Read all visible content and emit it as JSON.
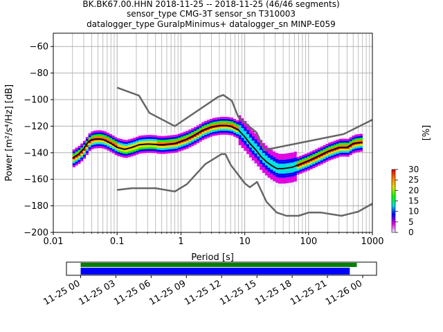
{
  "chart_data": {
    "type": "heatmap",
    "title_lines": [
      "BK.BK67.00.HHN   2018-11-25 -- 2018-11-25  (46/46 segments)",
      "sensor_type CMG-3T sensor_sn T310003",
      "datalogger_type GuralpMinimus+ datalogger_sn MINP-E059"
    ],
    "xlabel": "Period [s]",
    "ylabel": "Power [m²/s⁴/Hz] [dB]",
    "x_scale": "log",
    "xlim": [
      0.01,
      1000
    ],
    "ylim": [
      -200,
      -50
    ],
    "x_ticks": [
      {
        "value": 0.01,
        "label": "0.01"
      },
      {
        "value": 0.1,
        "label": "0.1"
      },
      {
        "value": 1,
        "label": "1"
      },
      {
        "value": 10,
        "label": "10"
      },
      {
        "value": 100,
        "label": "100"
      },
      {
        "value": 1000,
        "label": "1000"
      }
    ],
    "y_ticks": [
      {
        "value": -60,
        "label": "−60"
      },
      {
        "value": -80,
        "label": "−80"
      },
      {
        "value": -100,
        "label": "−100"
      },
      {
        "value": -120,
        "label": "−120"
      },
      {
        "value": -140,
        "label": "−140"
      },
      {
        "value": -160,
        "label": "−160"
      },
      {
        "value": -180,
        "label": "−180"
      },
      {
        "value": -200,
        "label": "−200"
      }
    ],
    "grid": true,
    "noise_models": [
      {
        "points": [
          [
            0.1,
            -91
          ],
          [
            0.22,
            -97
          ],
          [
            0.32,
            -110
          ],
          [
            0.8,
            -120
          ],
          [
            3.8,
            -98
          ],
          [
            4.6,
            -96.5
          ],
          [
            6.3,
            -101
          ],
          [
            7.9,
            -113
          ],
          [
            15.4,
            -125
          ],
          [
            20,
            -138
          ],
          [
            354.8,
            -126
          ],
          [
            10000,
            -91
          ]
        ]
      },
      {
        "points": [
          [
            0.1,
            -168
          ],
          [
            0.17,
            -166.7
          ],
          [
            0.4,
            -166.7
          ],
          [
            0.8,
            -169.2
          ],
          [
            1.24,
            -163.7
          ],
          [
            2.4,
            -148.6
          ],
          [
            4.3,
            -141.1
          ],
          [
            5,
            -141.1
          ],
          [
            6,
            -149
          ],
          [
            10,
            -163
          ],
          [
            12,
            -166
          ],
          [
            15.6,
            -162
          ],
          [
            21.9,
            -177
          ],
          [
            31.6,
            -185
          ],
          [
            45,
            -187.5
          ],
          [
            70,
            -187.5
          ],
          [
            101,
            -185
          ],
          [
            154,
            -185
          ],
          [
            328,
            -187.5
          ],
          [
            600,
            -184.4
          ],
          [
            10000,
            -151
          ]
        ]
      }
    ],
    "mean_curve": [
      [
        0.02,
        -144
      ],
      [
        0.025,
        -141
      ],
      [
        0.03,
        -137
      ],
      [
        0.035,
        -132
      ],
      [
        0.04,
        -130
      ],
      [
        0.05,
        -129.5
      ],
      [
        0.06,
        -130
      ],
      [
        0.08,
        -133
      ],
      [
        0.1,
        -136
      ],
      [
        0.13,
        -137.5
      ],
      [
        0.17,
        -136
      ],
      [
        0.22,
        -134
      ],
      [
        0.3,
        -133.5
      ],
      [
        0.5,
        -134
      ],
      [
        0.8,
        -133
      ],
      [
        1.2,
        -130
      ],
      [
        1.6,
        -127
      ],
      [
        2.2,
        -123
      ],
      [
        3,
        -120.5
      ],
      [
        4,
        -119.5
      ],
      [
        5,
        -119.5
      ],
      [
        6,
        -120
      ],
      [
        8,
        -123
      ],
      [
        10,
        -128
      ],
      [
        12,
        -133
      ],
      [
        15,
        -138
      ],
      [
        18,
        -143
      ],
      [
        22,
        -147
      ],
      [
        27,
        -150
      ],
      [
        32,
        -152
      ],
      [
        40,
        -152
      ],
      [
        55,
        -151
      ],
      [
        70,
        -149
      ],
      [
        100,
        -146
      ],
      [
        150,
        -142
      ],
      [
        200,
        -139
      ],
      [
        300,
        -136
      ],
      [
        400,
        -136
      ],
      [
        500,
        -133
      ],
      [
        700,
        -132
      ]
    ],
    "colorbar": {
      "label": "[%]",
      "min": 0,
      "max": 30,
      "ticks": [
        "0",
        "5",
        "10",
        "15",
        "20",
        "25",
        "30"
      ],
      "colors": [
        "#f0f0ff",
        "#e000e0",
        "#0000ff",
        "#00e0e0",
        "#00ff00",
        "#e0e000",
        "#ff8000",
        "#e00000"
      ]
    },
    "timeline": {
      "start": "2018-11-25 00:00",
      "end": "2018-11-26 02:00",
      "tick_labels": [
        "11-25 00",
        "11-25 03",
        "11-25 06",
        "11-25 09",
        "11-25 12",
        "11-25 15",
        "11-25 18",
        "11-25 21",
        "11-26 00"
      ],
      "data_coverage": {
        "start_hour": 0.0,
        "end_hour": 23.5,
        "color": "#008000"
      },
      "gap_coverage": {
        "start_hour": 0.0,
        "end_hour": 22.9,
        "color": "#0000ff"
      }
    }
  }
}
